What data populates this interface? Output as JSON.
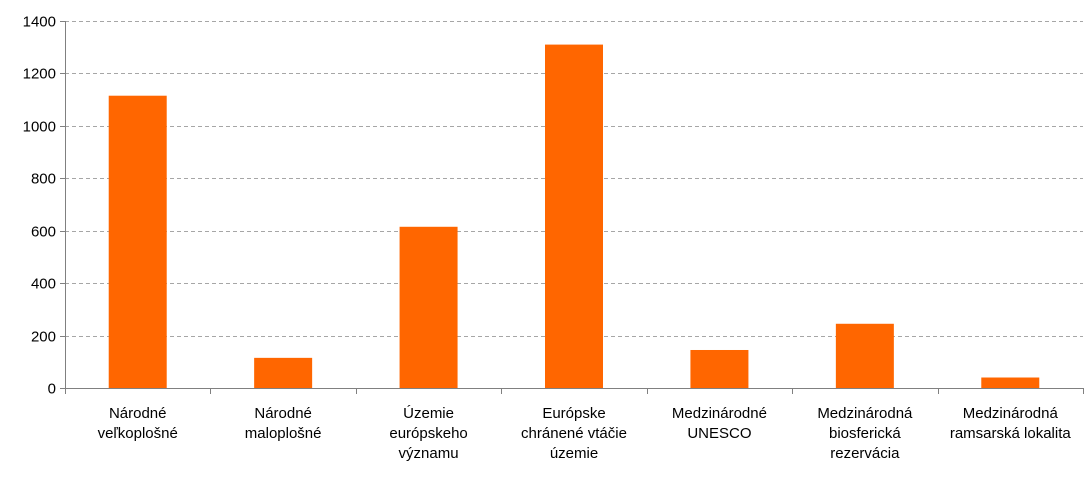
{
  "chart_data": {
    "type": "bar",
    "categories": [
      [
        "Národné",
        "veľkoplošné"
      ],
      [
        "Národné",
        "maloplošné"
      ],
      [
        "Územie",
        "európskeho",
        "významu"
      ],
      [
        "Európske",
        "chránené vtáčie",
        "územie"
      ],
      [
        "Medzinárodné",
        "UNESCO"
      ],
      [
        "Medzinárodná",
        "biosferická",
        "rezervácia"
      ],
      [
        "Medzinárodná",
        "ramsarská lokalita"
      ]
    ],
    "values": [
      1115,
      115,
      615,
      1310,
      145,
      245,
      40
    ],
    "ylim": [
      0,
      1400
    ],
    "yticks": [
      "0",
      "200",
      "400",
      "600",
      "800",
      "1000",
      "1200",
      "1400"
    ],
    "grid": true,
    "bar_color": "#ff6600",
    "grid_color": "#a6a6a6",
    "axis_color": "#808080"
  }
}
